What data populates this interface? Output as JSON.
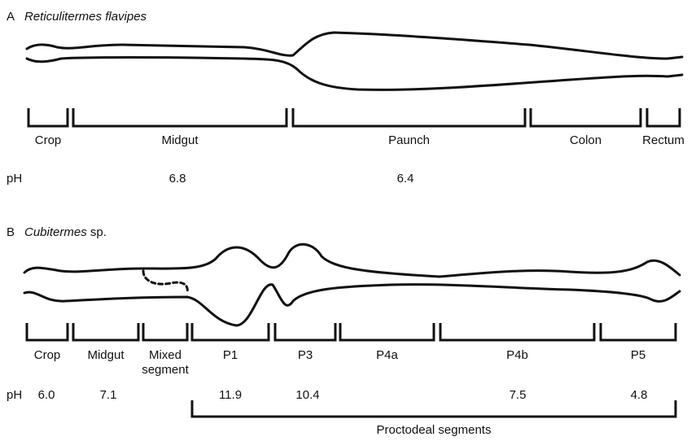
{
  "panels": [
    {
      "label": "A",
      "species": "Reticulitermes flavipes",
      "segments": [
        "Crop",
        "Midgut",
        "Paunch",
        "Colon",
        "Rectum"
      ],
      "ph_label": "pH",
      "ph": [
        "6.8",
        "6.4"
      ]
    },
    {
      "label": "B",
      "species": "Cubitermes",
      "species_suffix": "sp.",
      "segments": [
        "Crop",
        "Midgut",
        "Mixed segment",
        "P1",
        "P3",
        "P4a",
        "P4b",
        "P5"
      ],
      "ph_label": "pH",
      "ph": [
        "6.0",
        "7.1",
        "11.9",
        "10.4",
        "7.5",
        "4.8"
      ],
      "group_label": "Proctodeal segments"
    }
  ]
}
